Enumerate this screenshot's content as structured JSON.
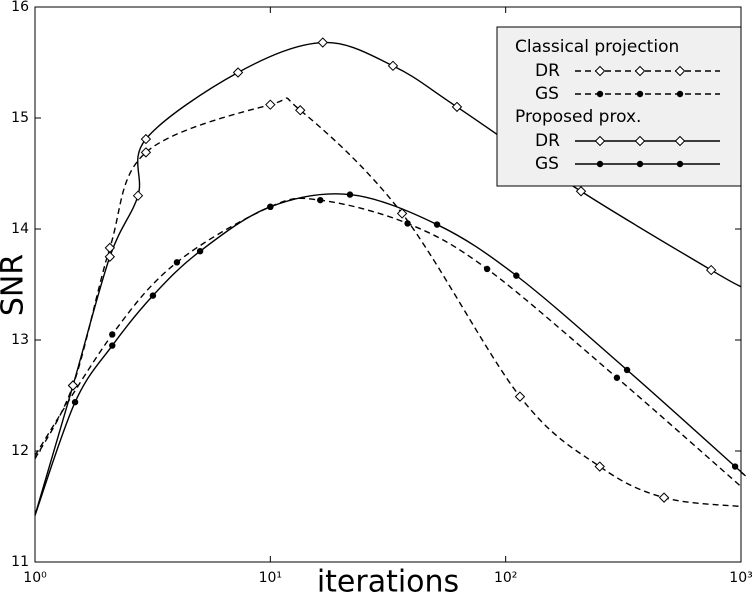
{
  "chart_data": {
    "type": "line",
    "xlabel": "iterations",
    "ylabel": "SNR",
    "xscale": "log",
    "xlim": [
      1,
      1000
    ],
    "ylim": [
      11,
      16
    ],
    "xticks": [
      {
        "value": 1,
        "label": "10⁰"
      },
      {
        "value": 10,
        "label": "10¹"
      },
      {
        "value": 100,
        "label": "10²"
      },
      {
        "value": 1000,
        "label": "10³"
      }
    ],
    "yticks": [
      11,
      12,
      13,
      14,
      15,
      16
    ],
    "legend": "top-right",
    "series": [
      {
        "name": "DR",
        "group": "Classical projection",
        "color": "#000000",
        "dash": true,
        "marker": "open",
        "x": [
          1,
          1.45,
          2.08,
          2.96,
          10,
          13.4,
          36.3,
          115,
          251,
          471,
          1000
        ],
        "values": [
          11.93,
          12.59,
          13.83,
          14.69,
          15.12,
          15.07,
          14.14,
          12.49,
          11.86,
          11.58,
          11.5
        ]
      },
      {
        "name": "GS",
        "group": "Classical projection",
        "color": "#000000",
        "dash": true,
        "marker": "filled",
        "x": [
          1,
          2.13,
          4.01,
          10,
          16.3,
          38.3,
          83.4,
          297,
          1000
        ],
        "values": [
          11.96,
          13.05,
          13.7,
          14.2,
          14.26,
          14.05,
          13.64,
          12.66,
          11.68
        ]
      },
      {
        "name": "DR",
        "group": "Proposed prox.",
        "color": "#000000",
        "dash": false,
        "marker": "open",
        "x": [
          1,
          1.45,
          2.08,
          2.74,
          2.96,
          7.29,
          16.7,
          33.2,
          62.1,
          209,
          747,
          1000
        ],
        "values": [
          11.42,
          12.59,
          13.75,
          14.3,
          14.81,
          15.41,
          15.68,
          15.47,
          15.1,
          14.34,
          13.63,
          13.48
        ]
      },
      {
        "name": "GS",
        "group": "Proposed prox.",
        "color": "#000000",
        "dash": false,
        "marker": "filled",
        "x": [
          1,
          1.48,
          2.13,
          3.17,
          5.03,
          10,
          21.8,
          51.1,
          111,
          328,
          944,
          1000
        ],
        "values": [
          11.42,
          12.44,
          12.95,
          13.4,
          13.8,
          14.2,
          14.31,
          14.04,
          13.58,
          12.73,
          11.86,
          11.81
        ]
      }
    ]
  }
}
